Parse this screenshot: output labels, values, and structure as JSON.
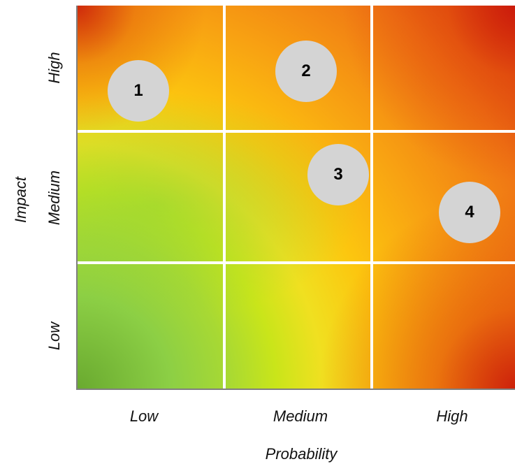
{
  "y_axis": {
    "title": "Impact",
    "levels": [
      "High",
      "Medium",
      "Low"
    ]
  },
  "x_axis": {
    "title": "Probability",
    "levels": [
      "Low",
      "Medium",
      "High"
    ]
  },
  "risks": [
    {
      "label": "1",
      "probability": "Low",
      "impact": "High"
    },
    {
      "label": "2",
      "probability": "Medium",
      "impact": "High"
    },
    {
      "label": "3",
      "probability": "Medium",
      "impact": "Medium"
    },
    {
      "label": "4",
      "probability": "High",
      "impact": "Medium"
    }
  ],
  "colors": {
    "low_risk": "#69a92f",
    "medium_risk": "#fcc60f",
    "high_risk": "#d93a10",
    "gridline": "#ffffff",
    "marker": "#d4d4d4"
  }
}
